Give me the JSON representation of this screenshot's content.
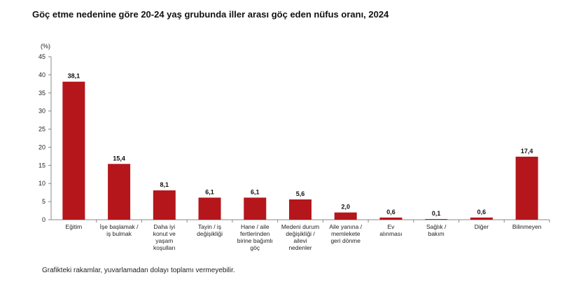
{
  "title": "Göç etme nedenine göre 20-24 yaş grubunda iller arası göç eden nüfus oranı, 2024",
  "note": "Grafikteki rakamlar, yuvarlamadan dolayı toplamı vermeyebilir.",
  "chart_data": {
    "type": "bar",
    "title": "Göç etme nedenine göre 20-24 yaş grubunda iller arası göç eden nüfus oranı, 2024",
    "ylabel": "(%)",
    "xlabel": "",
    "ylim": [
      0,
      45
    ],
    "yticks": [
      0,
      5,
      10,
      15,
      20,
      25,
      30,
      35,
      40,
      45
    ],
    "grid": false,
    "bar_color": "#b5161b",
    "categories": [
      [
        "Eğitim"
      ],
      [
        "İşe başlamak /",
        "iş bulmak"
      ],
      [
        "Daha iyi",
        "konut ve",
        "yaşam",
        "koşulları"
      ],
      [
        "Tayin / iş",
        "değişikliği"
      ],
      [
        "Hane / aile",
        "fertlerinden",
        "birine bağımlı",
        "göç"
      ],
      [
        "Medeni durum",
        "değişikliği /",
        "ailevi",
        "nedenler"
      ],
      [
        "Aile yanına /",
        "memlekete",
        "geri dönme"
      ],
      [
        "Ev",
        "alınması"
      ],
      [
        "Sağlık /",
        "bakım"
      ],
      [
        "Diğer"
      ],
      [
        "Bilinmeyen"
      ]
    ],
    "values": [
      38.1,
      15.4,
      8.1,
      6.1,
      6.1,
      5.6,
      2.0,
      0.6,
      0.1,
      0.6,
      17.4
    ],
    "value_labels": [
      "38,1",
      "15,4",
      "8,1",
      "6,1",
      "6,1",
      "5,6",
      "2,0",
      "0,6",
      "0,1",
      "0,6",
      "17,4"
    ]
  }
}
